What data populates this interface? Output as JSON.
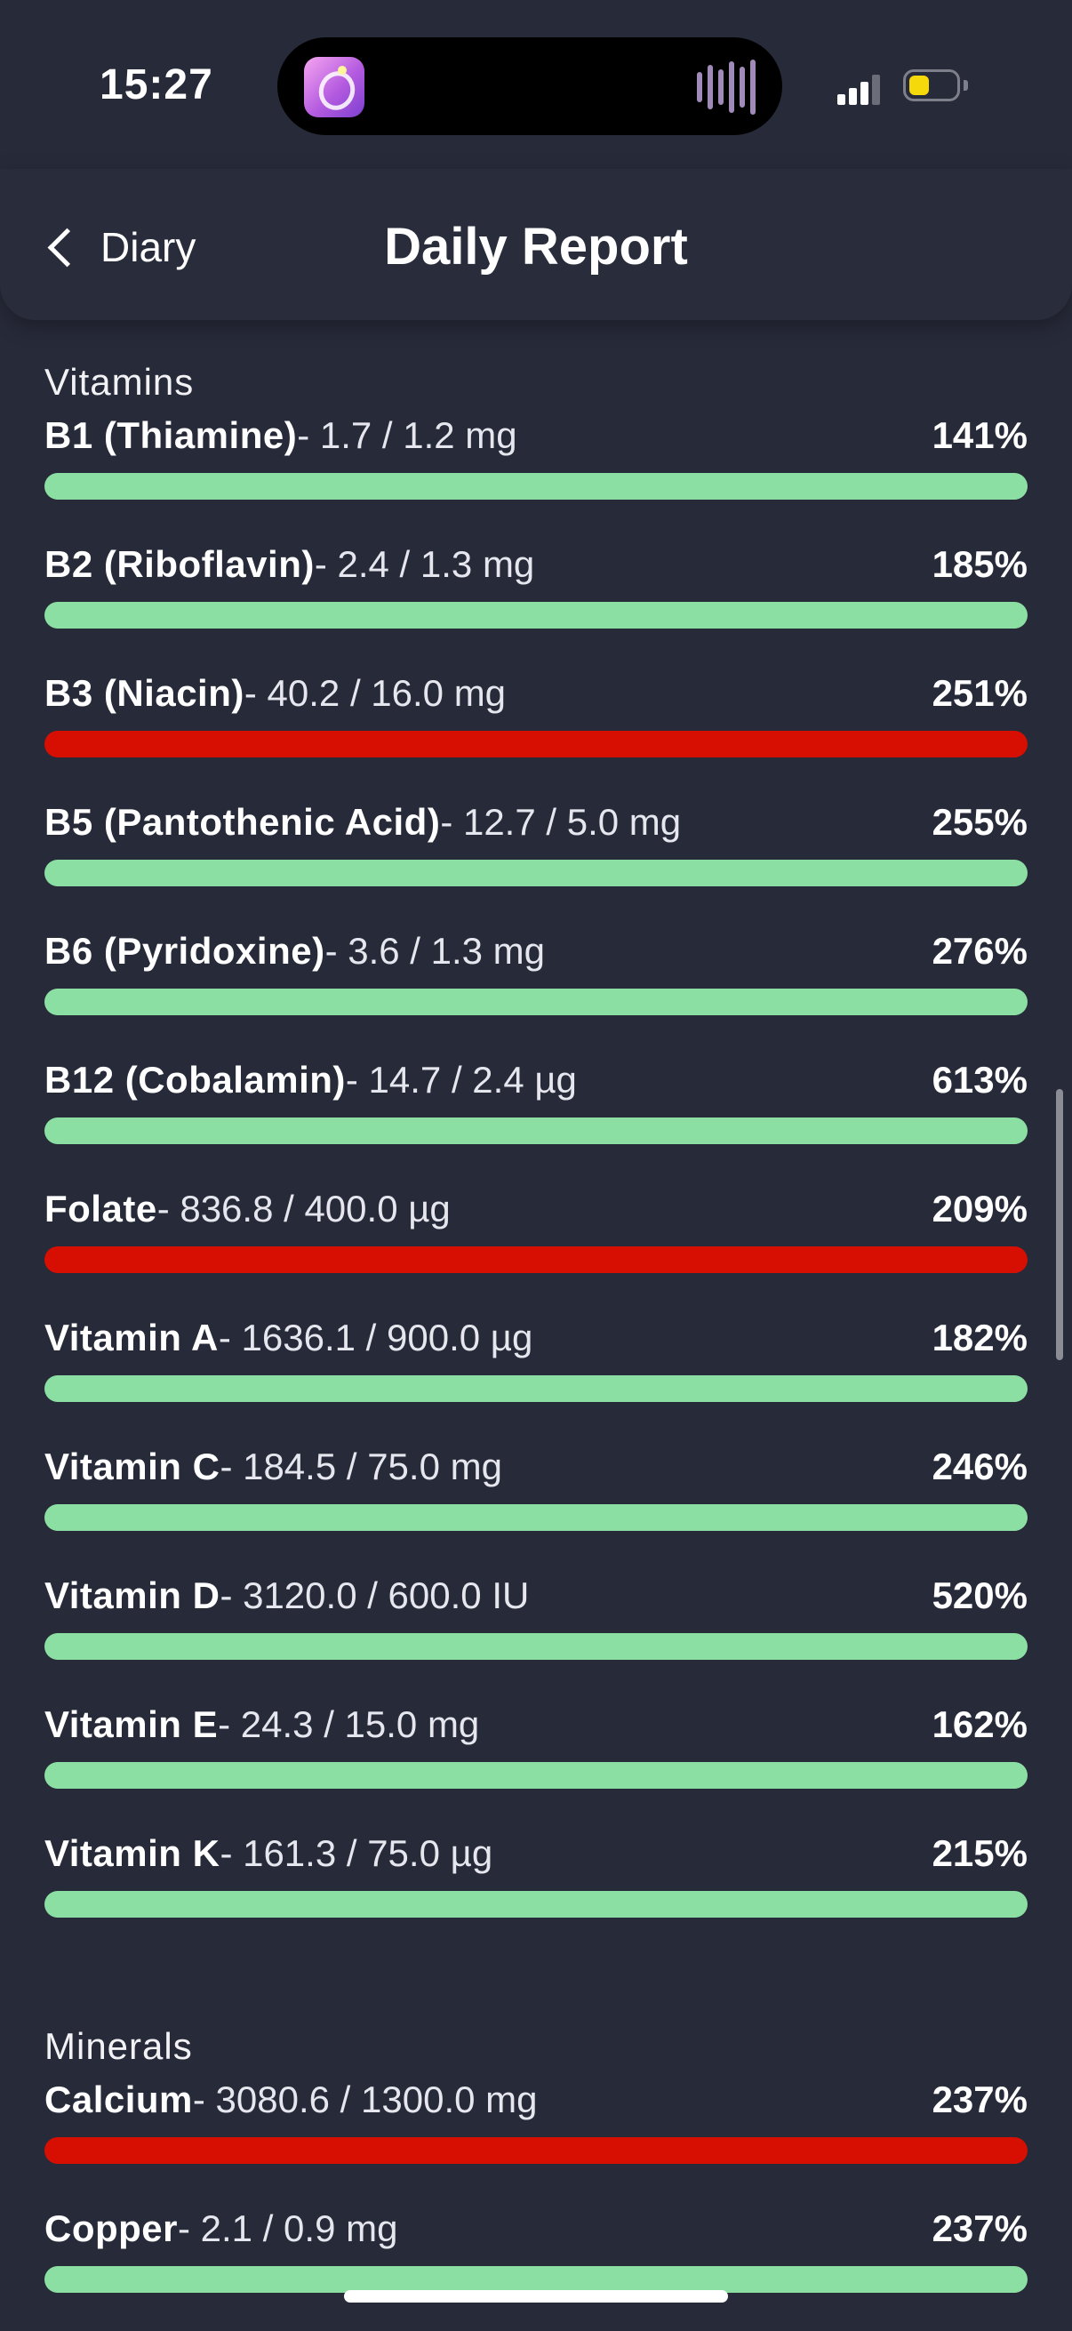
{
  "status_bar": {
    "time": "15:27",
    "battery_level": 0.3
  },
  "header": {
    "back_label": "Diary",
    "title": "Daily Report"
  },
  "colors": {
    "ok": "#8cdfa3",
    "over": "#d60f02",
    "background": "#272a39"
  },
  "sections": [
    {
      "title": "Vitamins",
      "items": [
        {
          "name": "B1 (Thiamine)",
          "amount": "- 1.7 / 1.2 mg",
          "percent": "141%",
          "status": "ok"
        },
        {
          "name": "B2 (Riboflavin)",
          "amount": "- 2.4 / 1.3 mg",
          "percent": "185%",
          "status": "ok"
        },
        {
          "name": "B3 (Niacin)",
          "amount": "- 40.2 / 16.0 mg",
          "percent": "251%",
          "status": "over"
        },
        {
          "name": "B5 (Pantothenic Acid)",
          "amount": "- 12.7 / 5.0 mg",
          "percent": "255%",
          "status": "ok"
        },
        {
          "name": "B6 (Pyridoxine)",
          "amount": "- 3.6 / 1.3 mg",
          "percent": "276%",
          "status": "ok"
        },
        {
          "name": "B12 (Cobalamin)",
          "amount": "- 14.7 / 2.4 µg",
          "percent": "613%",
          "status": "ok"
        },
        {
          "name": "Folate",
          "amount": "- 836.8 / 400.0 µg",
          "percent": "209%",
          "status": "over"
        },
        {
          "name": "Vitamin A",
          "amount": "- 1636.1 / 900.0 µg",
          "percent": "182%",
          "status": "ok"
        },
        {
          "name": "Vitamin C",
          "amount": "- 184.5 / 75.0 mg",
          "percent": "246%",
          "status": "ok"
        },
        {
          "name": "Vitamin D",
          "amount": "- 3120.0 / 600.0 IU",
          "percent": "520%",
          "status": "ok"
        },
        {
          "name": "Vitamin E",
          "amount": "- 24.3 / 15.0 mg",
          "percent": "162%",
          "status": "ok"
        },
        {
          "name": "Vitamin K",
          "amount": "- 161.3 / 75.0 µg",
          "percent": "215%",
          "status": "ok"
        }
      ]
    },
    {
      "title": "Minerals",
      "items": [
        {
          "name": "Calcium",
          "amount": "- 3080.6 / 1300.0 mg",
          "percent": "237%",
          "status": "over"
        },
        {
          "name": "Copper",
          "amount": "- 2.1 / 0.9 mg",
          "percent": "237%",
          "status": "ok"
        }
      ]
    }
  ]
}
